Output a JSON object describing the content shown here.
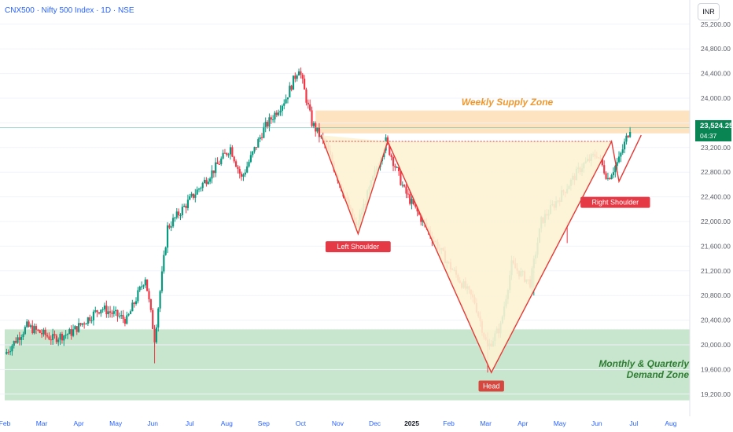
{
  "header": {
    "title": "CNX500 · Nifty 500 Index · 1D · NSE"
  },
  "currency_button": "INR",
  "last_price": {
    "value": "23,524.25",
    "countdown": "04:37",
    "color": "#088553"
  },
  "chart_data": {
    "type": "candlestick",
    "title": "CNX500 · Nifty 500 Index · 1D · NSE",
    "y_ticks": [
      19200,
      19600,
      20000,
      20400,
      20800,
      21200,
      21600,
      22000,
      22400,
      22800,
      23200,
      23600,
      24000,
      24400,
      24800,
      25200
    ],
    "y_tick_labels": [
      "19,200.00",
      "19,600.00",
      "20,000.00",
      "20,400.00",
      "20,800.00",
      "21,200.00",
      "21,600.00",
      "22,000.00",
      "22,400.00",
      "22,800.00",
      "23,200.00",
      "23,600.00",
      "24,000.00",
      "24,400.00",
      "24,800.00",
      "25,200.00"
    ],
    "x_tick_labels": [
      "Feb",
      "Mar",
      "Apr",
      "May",
      "Jun",
      "Jul",
      "Aug",
      "Sep",
      "Oct",
      "Nov",
      "Dec",
      "2025",
      "Feb",
      "Mar",
      "Apr",
      "May",
      "Jun",
      "Jul",
      "Aug"
    ],
    "x_tick_bold": [
      false,
      false,
      false,
      false,
      false,
      false,
      false,
      false,
      false,
      false,
      false,
      true,
      false,
      false,
      false,
      false,
      false,
      false,
      false
    ],
    "price_path": [
      {
        "month": 0.0,
        "price": 19850
      },
      {
        "month": 0.6,
        "price": 20300
      },
      {
        "month": 1.3,
        "price": 20100
      },
      {
        "month": 1.8,
        "price": 20200
      },
      {
        "month": 2.6,
        "price": 20600
      },
      {
        "month": 3.3,
        "price": 20400
      },
      {
        "month": 3.8,
        "price": 21100
      },
      {
        "month": 4.05,
        "price": 20100
      },
      {
        "month": 4.4,
        "price": 21900
      },
      {
        "month": 5.0,
        "price": 22350
      },
      {
        "month": 5.6,
        "price": 22800
      },
      {
        "month": 6.1,
        "price": 23200
      },
      {
        "month": 6.4,
        "price": 22700
      },
      {
        "month": 7.0,
        "price": 23500
      },
      {
        "month": 7.6,
        "price": 24000
      },
      {
        "month": 7.95,
        "price": 24500
      },
      {
        "month": 8.3,
        "price": 23600
      },
      {
        "month": 8.7,
        "price": 23200
      },
      {
        "month": 9.5,
        "price": 21900
      },
      {
        "month": 10.3,
        "price": 23300
      },
      {
        "month": 10.8,
        "price": 22500
      },
      {
        "month": 11.5,
        "price": 21800
      },
      {
        "month": 12.0,
        "price": 21300
      },
      {
        "month": 12.7,
        "price": 20700
      },
      {
        "month": 13.05,
        "price": 19950
      },
      {
        "month": 13.4,
        "price": 20300
      },
      {
        "month": 13.7,
        "price": 21300
      },
      {
        "month": 14.2,
        "price": 21000
      },
      {
        "month": 14.5,
        "price": 22000
      },
      {
        "month": 15.0,
        "price": 22400
      },
      {
        "month": 15.6,
        "price": 22900
      },
      {
        "month": 16.0,
        "price": 23100
      },
      {
        "month": 16.3,
        "price": 22700
      },
      {
        "month": 16.6,
        "price": 23000
      },
      {
        "month": 16.9,
        "price": 23524
      }
    ],
    "zones": [
      {
        "label": "Weekly Supply Zone",
        "from": 23430,
        "to": 23800,
        "start_month": 8.4,
        "color": "#fde3c0",
        "text_color": "#f0982f"
      },
      {
        "label": "Monthly & Quarterly Demand Zone",
        "label_lines": [
          "Monthly & Quarterly",
          "Demand Zone"
        ],
        "from": 19100,
        "to": 20250,
        "start_month": 0.0,
        "color": "#c7e6cd",
        "text_color": "#2e7d32"
      }
    ],
    "pattern": {
      "type": "inverse head and shoulders",
      "line_color": "#e53935",
      "points": [
        {
          "month": 8.55,
          "price": 23400
        },
        {
          "month": 9.55,
          "price": 21800
        },
        {
          "month": 10.35,
          "price": 23300
        },
        {
          "month": 13.15,
          "price": 19550
        },
        {
          "month": 16.4,
          "price": 23300
        },
        {
          "month": 16.6,
          "price": 22650
        },
        {
          "month": 17.2,
          "price": 23400
        }
      ],
      "neckline": {
        "price": 23300,
        "from_month": 8.6,
        "to_month": 16.4
      },
      "labels": [
        {
          "text": "Left Shoulder",
          "month": 9.55,
          "price": 21680
        },
        {
          "text": "Head",
          "month": 13.15,
          "price": 19420
        },
        {
          "text": "Right Shoulder",
          "month": 16.5,
          "price": 22400
        }
      ]
    },
    "last_price_line": 23524.25,
    "colors": {
      "up": "#089981",
      "down": "#f23645"
    }
  }
}
